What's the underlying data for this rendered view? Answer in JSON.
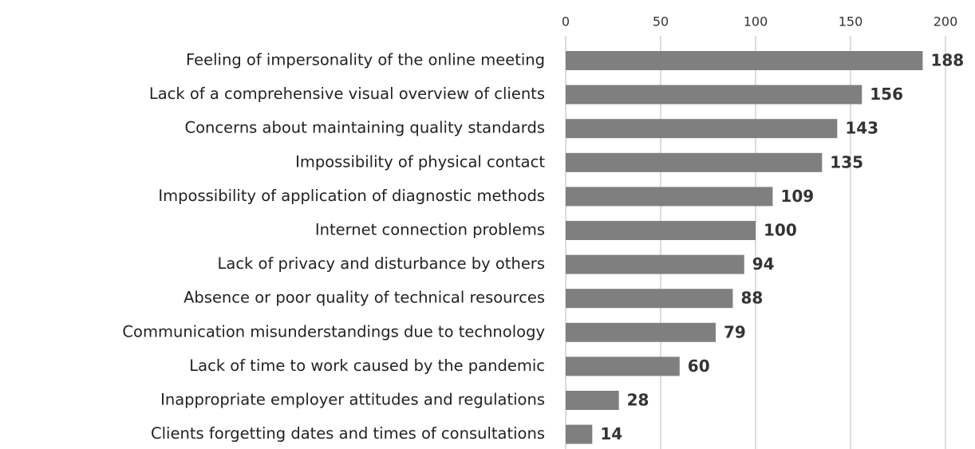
{
  "chart_data": {
    "type": "bar",
    "orientation": "horizontal",
    "categories": [
      "Feeling of impersonality of the online meeting",
      "Lack of a comprehensive visual overview of clients",
      "Concerns about maintaining quality standards",
      "Impossibility of physical contact",
      "Impossibility of application of diagnostic methods",
      "Internet connection problems",
      "Lack of privacy and disturbance by others",
      "Absence or poor quality of technical resources",
      "Communication misunderstandings due to technology",
      "Lack of time to work caused by the pandemic",
      "Inappropriate employer attitudes and regulations",
      "Clients forgetting dates and times of consultations"
    ],
    "values": [
      188,
      156,
      143,
      135,
      109,
      100,
      94,
      88,
      79,
      60,
      28,
      14
    ],
    "color": "#7f7f7f",
    "xlim": [
      0,
      200
    ],
    "xticks": [
      0,
      50,
      100,
      150,
      200
    ],
    "grid": true
  }
}
